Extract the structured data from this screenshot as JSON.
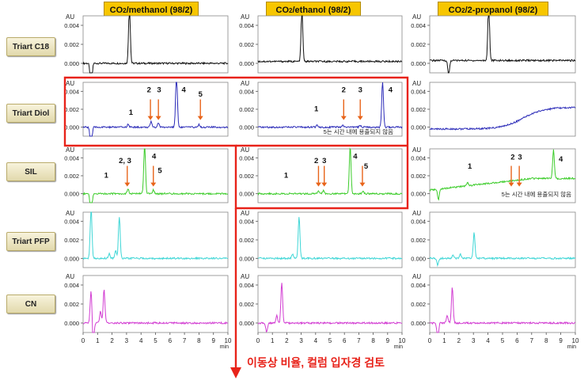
{
  "columns": [
    {
      "prefix": "CO",
      "sub": "2",
      "suffix": "/methanol (98/2)"
    },
    {
      "prefix": "CO",
      "sub": "2",
      "suffix": "/ethanol (98/2)"
    },
    {
      "prefix": "CO",
      "sub": "2",
      "suffix": "/2-propanol (98/2)"
    }
  ],
  "rows": [
    "Triart C18",
    "Triart Diol",
    "SIL",
    "Triart PFP",
    "CN"
  ],
  "note_not_eluted": "5는 시간 내에 용출되지 않음",
  "bottom_note": "이동상 비율, 컬럼 입자경 검토",
  "colors": {
    "header_bg": "#f7c600",
    "highlight_box": "#e8231a",
    "arrow": "#e8641a",
    "trace_C18": "#111111",
    "trace_Diol": "#2b2bb8",
    "trace_SIL": "#3ccc2a",
    "trace_PFP": "#3fd6d6",
    "trace_CN": "#d23cd2"
  },
  "chart_data": {
    "type": "line",
    "ylabel": "AU",
    "xlabel": "min",
    "xlim": [
      0,
      10
    ],
    "ylim": [
      -0.001,
      0.005
    ],
    "xticks": [
      0,
      1,
      2,
      3,
      4,
      5,
      6,
      7,
      8,
      9,
      10
    ],
    "yticks": [
      "0.004",
      "0.002",
      "0.000"
    ],
    "panels": [
      {
        "row": "Triart C18",
        "col": "methanol",
        "color": "#111111",
        "baseline": 0.0,
        "peaks": [
          {
            "t": 0.55,
            "h": -0.004
          },
          {
            "t": 3.2,
            "h": 0.0062
          }
        ],
        "annotations": [],
        "arrows": []
      },
      {
        "row": "Triart C18",
        "col": "ethanol",
        "color": "#111111",
        "baseline": 0.0002,
        "peaks": [
          {
            "t": 3.05,
            "h": 0.0055
          }
        ],
        "annotations": [],
        "arrows": []
      },
      {
        "row": "Triart C18",
        "col": "2-propanol",
        "color": "#111111",
        "baseline": 0.0003,
        "peaks": [
          {
            "t": 1.3,
            "h": -0.0015
          },
          {
            "t": 4.05,
            "h": 0.0062
          }
        ],
        "annotations": [],
        "arrows": []
      },
      {
        "row": "Triart Diol",
        "col": "methanol",
        "color": "#2b2bb8",
        "baseline": 0.0,
        "peaks": [
          {
            "t": 0.55,
            "h": -0.003
          },
          {
            "t": 3.1,
            "h": 0.0003
          },
          {
            "t": 4.7,
            "h": 0.0006
          },
          {
            "t": 5.2,
            "h": 0.0005
          },
          {
            "t": 6.45,
            "h": 0.0062
          },
          {
            "t": 8.0,
            "h": 0.0003
          }
        ],
        "annotations": [
          {
            "t": 3.3,
            "y": 0.0014,
            "text": "1"
          },
          {
            "t": 4.55,
            "y": 0.0039,
            "text": "2"
          },
          {
            "t": 5.25,
            "y": 0.0039,
            "text": "3"
          },
          {
            "t": 6.95,
            "y": 0.0039,
            "text": "4"
          },
          {
            "t": 8.1,
            "y": 0.0034,
            "text": "5"
          }
        ],
        "arrows": [
          {
            "t": 4.65
          },
          {
            "t": 5.2
          },
          {
            "t": 8.1
          }
        ]
      },
      {
        "row": "Triart Diol",
        "col": "ethanol",
        "color": "#2b2bb8",
        "baseline": 0.0,
        "peaks": [
          {
            "t": 4.1,
            "h": 0.0003
          },
          {
            "t": 5.9,
            "h": 0.0002
          },
          {
            "t": 7.1,
            "h": 0.0002
          },
          {
            "t": 8.65,
            "h": 0.0052
          }
        ],
        "annotations": [
          {
            "t": 4.05,
            "y": 0.0018,
            "text": "1"
          },
          {
            "t": 5.95,
            "y": 0.0039,
            "text": "2"
          },
          {
            "t": 7.1,
            "y": 0.0039,
            "text": "3"
          },
          {
            "t": 9.2,
            "y": 0.0039,
            "text": "4"
          }
        ],
        "arrows": [
          {
            "t": 5.95
          },
          {
            "t": 7.1
          }
        ]
      },
      {
        "row": "Triart Diol",
        "col": "2-propanol",
        "color": "#2b2bb8",
        "baseline": "ramp",
        "peaks": [],
        "annotations": [],
        "arrows": []
      },
      {
        "row": "SIL",
        "col": "methanol",
        "color": "#3ccc2a",
        "baseline": 0.0,
        "peaks": [
          {
            "t": 0.55,
            "h": -0.003
          },
          {
            "t": 3.1,
            "h": 0.0005
          },
          {
            "t": 4.25,
            "h": 0.0057
          },
          {
            "t": 4.85,
            "h": 0.0004
          }
        ],
        "annotations": [
          {
            "t": 1.6,
            "y": 0.0018,
            "text": "1"
          },
          {
            "t": 2.9,
            "y": 0.0034,
            "text": "2, 3"
          },
          {
            "t": 4.9,
            "y": 0.0039,
            "text": "4"
          },
          {
            "t": 5.3,
            "y": 0.0023,
            "text": "5"
          }
        ],
        "arrows": [
          {
            "t": 3.05
          },
          {
            "t": 4.85
          }
        ]
      },
      {
        "row": "SIL",
        "col": "ethanol",
        "color": "#3ccc2a",
        "baseline": 0.0,
        "peaks": [
          {
            "t": 4.2,
            "h": 0.0003
          },
          {
            "t": 4.55,
            "h": 0.0004
          },
          {
            "t": 6.4,
            "h": 0.0052
          },
          {
            "t": 7.3,
            "h": 0.0003
          }
        ],
        "annotations": [
          {
            "t": 1.95,
            "y": 0.0018,
            "text": "1"
          },
          {
            "t": 4.05,
            "y": 0.0034,
            "text": "2"
          },
          {
            "t": 4.6,
            "y": 0.0034,
            "text": "3"
          },
          {
            "t": 6.75,
            "y": 0.0039,
            "text": "4"
          },
          {
            "t": 7.5,
            "y": 0.0028,
            "text": "5"
          }
        ],
        "arrows": [
          {
            "t": 4.2
          },
          {
            "t": 4.6
          },
          {
            "t": 7.25
          }
        ]
      },
      {
        "row": "SIL",
        "col": "2-propanol",
        "color": "#3ccc2a",
        "baseline": "drift",
        "peaks": [
          {
            "t": 0.6,
            "h": -0.0012
          },
          {
            "t": 2.6,
            "h": 0.0004
          },
          {
            "t": 8.5,
            "h": 0.0032
          }
        ],
        "annotations": [
          {
            "t": 2.75,
            "y": 0.0028,
            "text": "1"
          },
          {
            "t": 5.7,
            "y": 0.0038,
            "text": "2"
          },
          {
            "t": 6.2,
            "y": 0.0038,
            "text": "3"
          },
          {
            "t": 9.0,
            "y": 0.0036,
            "text": "4"
          }
        ],
        "arrows": [
          {
            "t": 5.6
          },
          {
            "t": 6.15
          }
        ]
      },
      {
        "row": "Triart PFP",
        "col": "methanol",
        "color": "#3fd6d6",
        "baseline": 0.0,
        "peaks": [
          {
            "t": 0.55,
            "h": 0.0055
          },
          {
            "t": 1.8,
            "h": 0.0005
          },
          {
            "t": 2.25,
            "h": 0.0008
          },
          {
            "t": 2.5,
            "h": 0.0045
          }
        ],
        "annotations": [],
        "arrows": []
      },
      {
        "row": "Triart PFP",
        "col": "ethanol",
        "color": "#3fd6d6",
        "baseline": 0.0,
        "peaks": [
          {
            "t": 2.4,
            "h": 0.0005
          },
          {
            "t": 2.85,
            "h": 0.0045
          }
        ],
        "annotations": [],
        "arrows": []
      },
      {
        "row": "Triart PFP",
        "col": "2-propanol",
        "color": "#3fd6d6",
        "baseline": 0.0,
        "peaks": [
          {
            "t": 0.55,
            "h": -0.0007
          },
          {
            "t": 1.6,
            "h": 0.0004
          },
          {
            "t": 2.1,
            "h": 0.0005
          },
          {
            "t": 3.05,
            "h": 0.0028
          }
        ],
        "annotations": [],
        "arrows": []
      },
      {
        "row": "CN",
        "col": "methanol",
        "color": "#d23cd2",
        "baseline": 0.0,
        "peaks": [
          {
            "t": 0.55,
            "h": 0.0035
          },
          {
            "t": 0.7,
            "h": -0.0025
          },
          {
            "t": 1.2,
            "h": 0.0012
          },
          {
            "t": 1.45,
            "h": 0.0035
          }
        ],
        "annotations": [],
        "arrows": []
      },
      {
        "row": "CN",
        "col": "ethanol",
        "color": "#d23cd2",
        "baseline": 0.0,
        "peaks": [
          {
            "t": 0.6,
            "h": -0.001
          },
          {
            "t": 1.3,
            "h": 0.0008
          },
          {
            "t": 1.65,
            "h": 0.0042
          }
        ],
        "annotations": [],
        "arrows": []
      },
      {
        "row": "CN",
        "col": "2-propanol",
        "color": "#d23cd2",
        "baseline": 0.0,
        "peaks": [
          {
            "t": 0.55,
            "h": -0.0018
          },
          {
            "t": 1.2,
            "h": 0.0008
          },
          {
            "t": 1.55,
            "h": 0.0038
          }
        ],
        "annotations": [],
        "arrows": []
      }
    ]
  }
}
